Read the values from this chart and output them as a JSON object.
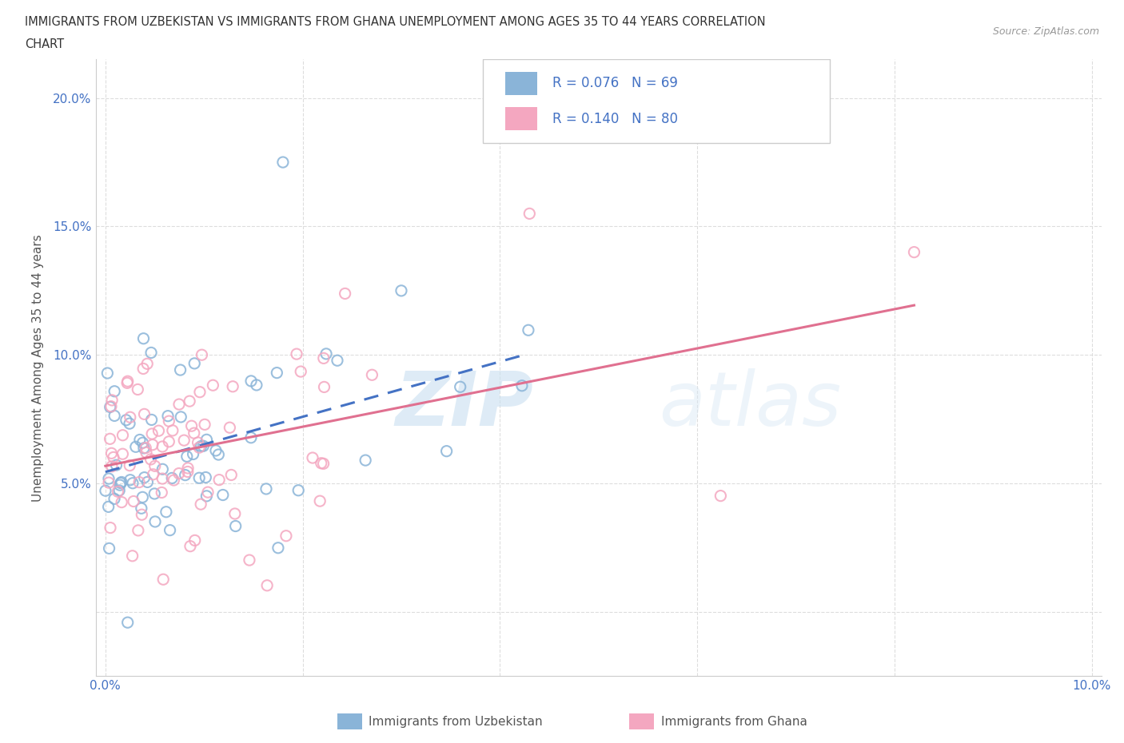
{
  "title_line1": "IMMIGRANTS FROM UZBEKISTAN VS IMMIGRANTS FROM GHANA UNEMPLOYMENT AMONG AGES 35 TO 44 YEARS CORRELATION",
  "title_line2": "CHART",
  "source": "Source: ZipAtlas.com",
  "ylabel": "Unemployment Among Ages 35 to 44 years",
  "xlim": [
    -0.001,
    0.101
  ],
  "ylim": [
    -0.025,
    0.215
  ],
  "xtick_vals": [
    0.0,
    0.02,
    0.04,
    0.06,
    0.08,
    0.1
  ],
  "xticklabels": [
    "0.0%",
    "",
    "",
    "",
    "",
    "10.0%"
  ],
  "ytick_vals": [
    0.0,
    0.05,
    0.1,
    0.15,
    0.2
  ],
  "yticklabels": [
    "",
    "5.0%",
    "10.0%",
    "15.0%",
    "20.0%"
  ],
  "uzbekistan_color": "#8ab4d8",
  "ghana_color": "#f4a7c0",
  "uzbekistan_R": 0.076,
  "uzbekistan_N": 69,
  "ghana_R": 0.14,
  "ghana_N": 80,
  "legend_label_uzbekistan": "Immigrants from Uzbekistan",
  "legend_label_ghana": "Immigrants from Ghana",
  "watermark_zip": "ZIP",
  "watermark_atlas": "atlas",
  "background_color": "#ffffff",
  "grid_color": "#dddddd",
  "title_color": "#333333",
  "axis_label_color": "#555555",
  "tick_color": "#4472c4",
  "trend_uzbekistan_color": "#4472c4",
  "trend_ghana_color": "#e07090",
  "seed": 123
}
